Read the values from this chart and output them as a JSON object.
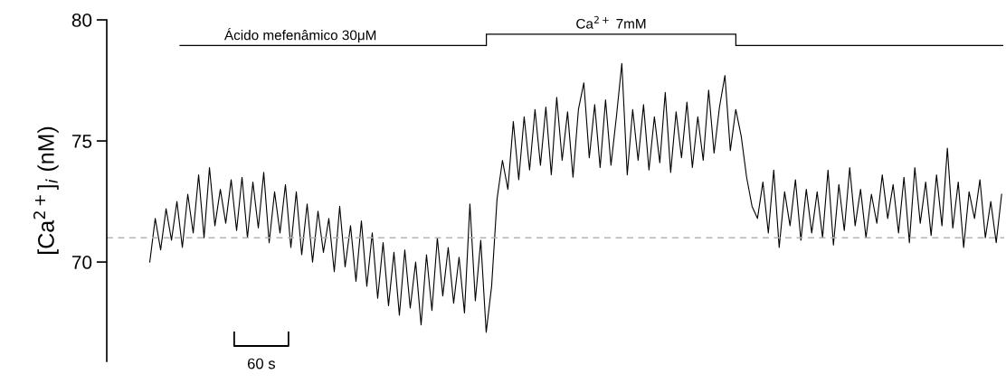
{
  "chart_data": {
    "type": "line",
    "ylabel": "[Ca$^{2+}$]$_{i}$ (nM)",
    "categories": [
      null,
      null,
      null,
      null,
      null,
      null,
      null,
      null,
      null,
      null,
      null,
      null,
      null,
      null,
      null,
      null,
      null,
      null,
      null,
      null,
      null,
      null,
      null,
      null,
      null,
      null,
      null,
      null,
      null,
      null,
      null,
      null,
      null,
      null,
      null,
      null,
      null,
      null,
      null,
      null,
      null,
      null,
      null,
      null,
      null,
      null,
      null,
      null,
      null,
      null,
      null,
      null,
      null,
      null,
      null,
      null,
      null,
      null,
      null,
      null,
      null,
      null,
      null,
      null,
      null,
      null,
      null,
      null,
      null,
      null,
      null,
      null,
      null,
      null,
      null,
      null,
      null,
      null,
      null,
      null,
      null,
      null,
      null,
      null,
      null,
      null,
      null,
      null,
      null,
      null,
      null,
      null,
      null,
      null,
      null,
      null,
      null,
      null,
      null,
      null,
      null,
      null,
      null,
      null,
      null,
      null,
      null,
      null,
      null,
      null,
      null,
      null,
      null,
      null,
      null,
      null,
      null,
      null,
      null,
      null,
      null,
      null,
      null,
      null,
      null,
      null,
      null,
      null,
      null,
      null,
      null,
      null,
      null,
      null,
      null,
      null,
      null,
      null,
      null,
      null,
      null,
      null,
      null,
      null,
      null,
      null,
      null,
      null,
      null,
      null,
      null,
      null,
      null,
      null,
      null,
      null,
      null,
      null
    ],
    "series": [
      {
        "color": "#000000",
        "values": [
          70.0,
          71.8,
          70.5,
          72.2,
          70.9,
          72.5,
          70.6,
          72.8,
          71.2,
          73.6,
          71.0,
          73.9,
          71.5,
          73.0,
          71.6,
          73.4,
          71.3,
          73.5,
          71.0,
          73.3,
          71.4,
          73.7,
          70.8,
          72.9,
          71.2,
          73.2,
          70.6,
          72.9,
          70.3,
          72.4,
          70.0,
          72.1,
          70.4,
          71.8,
          69.6,
          72.3,
          69.8,
          71.5,
          69.2,
          71.7,
          69.0,
          71.2,
          68.5,
          70.8,
          68.2,
          70.4,
          67.8,
          70.5,
          68.1,
          70.0,
          67.4,
          70.3,
          68.0,
          71.0,
          68.6,
          70.6,
          68.3,
          70.2,
          67.9,
          72.4,
          68.4,
          70.9,
          67.1,
          69.0,
          72.6,
          74.2,
          73.0,
          75.8,
          73.4,
          76.0,
          73.8,
          76.3,
          74.0,
          76.4,
          73.6,
          76.8,
          74.2,
          76.2,
          73.5,
          76.3,
          77.4,
          74.3,
          76.5,
          73.9,
          76.7,
          74.0,
          76.0,
          78.2,
          73.6,
          76.3,
          74.2,
          76.5,
          73.8,
          76.0,
          74.1,
          77.0,
          73.7,
          76.2,
          74.3,
          76.6,
          73.9,
          76.0,
          74.2,
          77.1,
          74.5,
          76.4,
          77.7,
          74.6,
          76.3,
          75.2,
          73.5,
          72.3,
          71.8,
          73.3,
          71.2,
          73.8,
          70.6,
          72.9,
          71.5,
          73.4,
          70.9,
          73.0,
          71.2,
          72.9,
          71.0,
          73.8,
          70.7,
          73.2,
          71.3,
          73.9,
          71.5,
          73.0,
          71.0,
          72.8,
          71.6,
          73.6,
          71.8,
          73.2,
          71.2,
          73.5,
          70.8,
          73.9,
          71.6,
          73.3,
          71.1,
          73.6,
          71.5,
          74.7,
          71.4,
          73.3,
          70.6,
          72.9,
          71.8,
          73.4,
          71.0,
          72.5,
          70.8,
          72.8
        ]
      }
    ],
    "ylim": [
      65.9,
      80
    ],
    "yticks": [
      70,
      75,
      80
    ],
    "tick_labels": "y",
    "ref_lines": [
      {
        "axis": "y",
        "value": 71,
        "color": "#b4b4b4",
        "line_style": "dashed"
      }
    ],
    "annotations": [
      "Ácido mefenâmico 30μM",
      "Ca$^{2+}$ 7mM",
      "60 s"
    ]
  }
}
